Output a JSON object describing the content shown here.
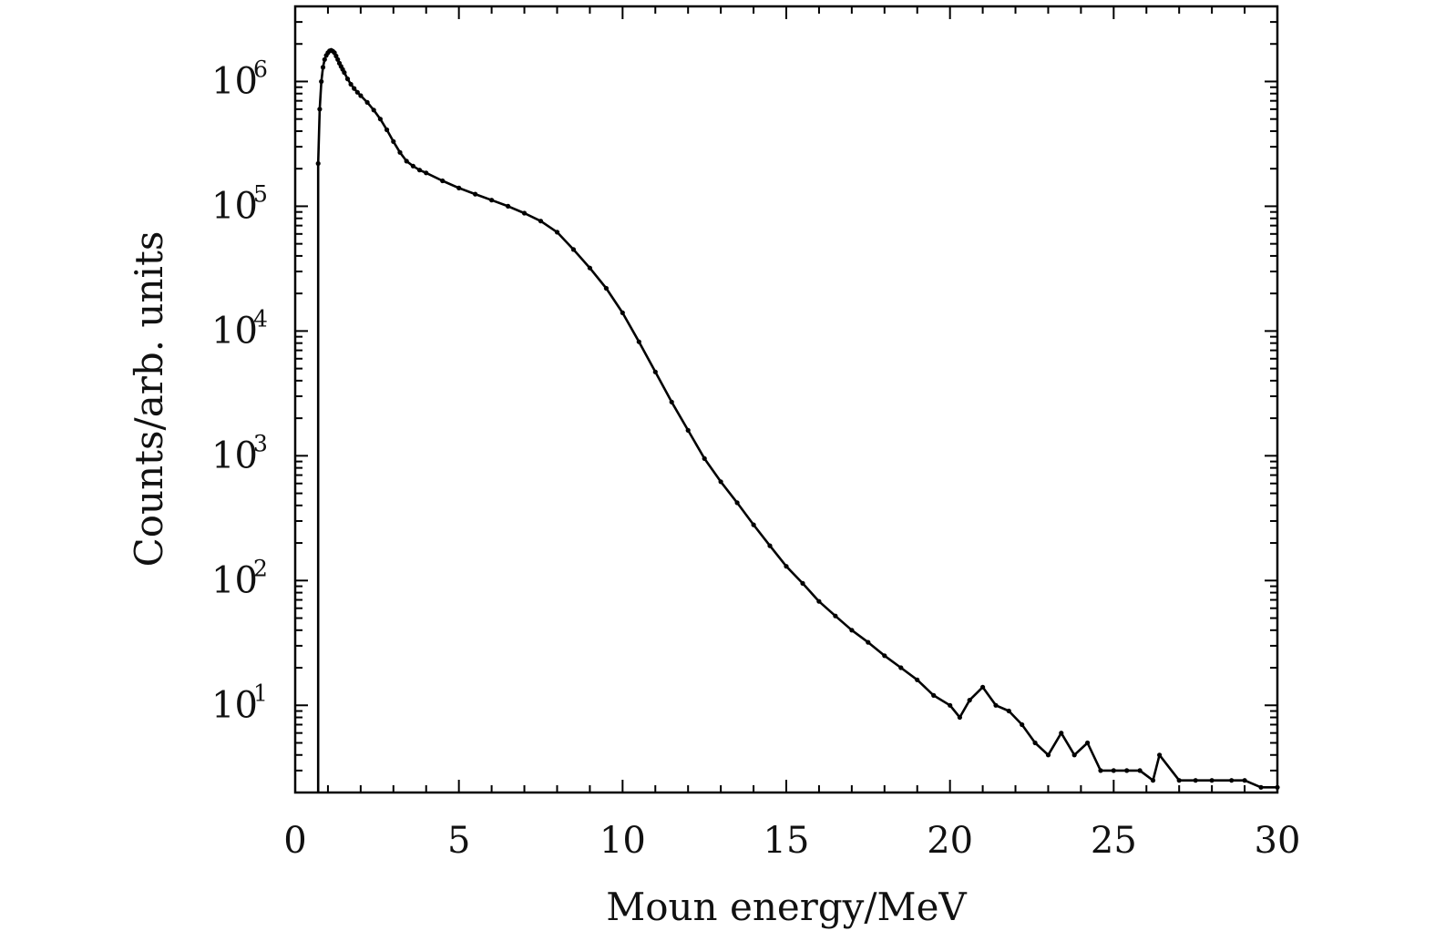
{
  "chart_data": {
    "type": "scatter",
    "title": "",
    "xlabel": "Moun energy/MeV",
    "ylabel": "Counts/arb. units",
    "xlim": [
      0,
      30
    ],
    "ylim": [
      2,
      4000000
    ],
    "yscale": "log",
    "x_ticks": [
      "0",
      "5",
      "10",
      "15",
      "20",
      "25",
      "30"
    ],
    "y_ticks": [
      {
        "base": "10",
        "exp": "1"
      },
      {
        "base": "10",
        "exp": "2"
      },
      {
        "base": "10",
        "exp": "3"
      },
      {
        "base": "10",
        "exp": "4"
      },
      {
        "base": "10",
        "exp": "5"
      },
      {
        "base": "10",
        "exp": "6"
      }
    ],
    "grid": false,
    "legend": "none",
    "line_color": "#000000",
    "series": [
      {
        "x": [
          0.7,
          0.75,
          0.8,
          0.85,
          0.9,
          0.95,
          1.0,
          1.05,
          1.1,
          1.15,
          1.2,
          1.25,
          1.3,
          1.35,
          1.4,
          1.45,
          1.5,
          1.6,
          1.7,
          1.8,
          1.9,
          2.0,
          2.2,
          2.4,
          2.6,
          2.8,
          3.0,
          3.2,
          3.4,
          3.6,
          3.8,
          4.0,
          4.5,
          5.0,
          5.5,
          6.0,
          6.5,
          7.0,
          7.5,
          8.0,
          8.5,
          9.0,
          9.5,
          10.0,
          10.5,
          11.0,
          11.5,
          12.0,
          12.5,
          13.0,
          13.5,
          14.0,
          14.5,
          15.0,
          15.5,
          16.0,
          16.5,
          17.0,
          17.5,
          18.0,
          18.5,
          19.0,
          19.5,
          20.0,
          20.3,
          20.6,
          21.0,
          21.4,
          21.8,
          22.2,
          22.6,
          23.0,
          23.4,
          23.8,
          24.2,
          24.6,
          25.0,
          25.4,
          25.8,
          26.2,
          26.4,
          27.0,
          27.5,
          28.0,
          28.6,
          29.0,
          29.5,
          30.0
        ],
        "y": [
          220000,
          600000,
          1000000,
          1300000,
          1500000,
          1620000,
          1700000,
          1760000,
          1780000,
          1750000,
          1700000,
          1600000,
          1500000,
          1400000,
          1320000,
          1250000,
          1180000,
          1050000,
          950000,
          880000,
          820000,
          770000,
          680000,
          590000,
          500000,
          410000,
          330000,
          270000,
          230000,
          210000,
          195000,
          185000,
          160000,
          140000,
          125000,
          112000,
          100000,
          88000,
          76000,
          62000,
          45000,
          32000,
          22000,
          14000,
          8200,
          4700,
          2700,
          1600,
          950,
          620,
          420,
          280,
          190,
          130,
          95,
          68,
          52,
          40,
          32,
          25,
          20,
          16,
          12,
          10,
          8,
          11,
          14,
          10,
          9,
          7,
          5,
          4,
          6,
          4,
          5,
          3,
          3,
          3,
          3,
          2.5,
          4,
          2.5,
          2.5,
          2.5,
          2.5,
          2.5,
          2.2,
          2.2
        ]
      }
    ]
  }
}
